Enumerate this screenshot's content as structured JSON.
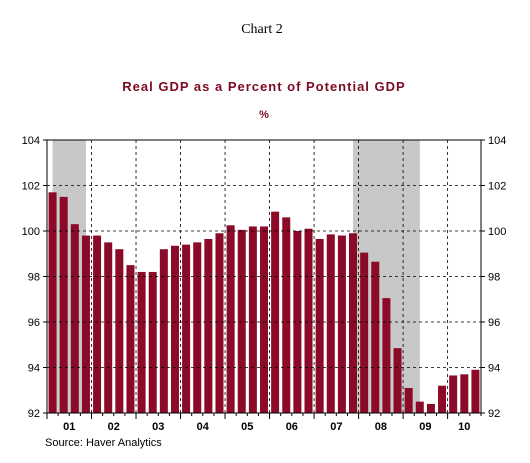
{
  "header": {
    "chart_number": "Chart 2"
  },
  "source": "Source: Haver Analytics",
  "colors": {
    "bar": "#8b0a27",
    "recession": "#c8c8c8",
    "axis": "#000000",
    "title": "#7a0a22"
  },
  "chart_data": {
    "type": "bar",
    "title": "Real GDP as a Percent of Potential GDP",
    "subtitle": "%",
    "xlabel": "",
    "ylabel": "",
    "ylim": [
      92,
      104
    ],
    "yticks": [
      92,
      94,
      96,
      98,
      100,
      102,
      104
    ],
    "year_labels": [
      "01",
      "02",
      "03",
      "04",
      "05",
      "06",
      "07",
      "08",
      "09",
      "10"
    ],
    "categories": [
      "2001Q1",
      "2001Q2",
      "2001Q3",
      "2001Q4",
      "2002Q1",
      "2002Q2",
      "2002Q3",
      "2002Q4",
      "2003Q1",
      "2003Q2",
      "2003Q3",
      "2003Q4",
      "2004Q1",
      "2004Q2",
      "2004Q3",
      "2004Q4",
      "2005Q1",
      "2005Q2",
      "2005Q3",
      "2005Q4",
      "2006Q1",
      "2006Q2",
      "2006Q3",
      "2006Q4",
      "2007Q1",
      "2007Q2",
      "2007Q3",
      "2007Q4",
      "2008Q1",
      "2008Q2",
      "2008Q3",
      "2008Q4",
      "2009Q1",
      "2009Q2",
      "2009Q3",
      "2009Q4",
      "2010Q1",
      "2010Q2",
      "2010Q3"
    ],
    "values": [
      101.7,
      101.5,
      100.3,
      99.8,
      99.8,
      99.5,
      99.2,
      98.5,
      98.2,
      98.2,
      99.2,
      99.35,
      99.4,
      99.5,
      99.65,
      99.9,
      100.25,
      100.05,
      100.2,
      100.2,
      100.85,
      100.6,
      100.0,
      100.1,
      99.65,
      99.85,
      99.8,
      99.9,
      99.05,
      98.65,
      97.05,
      94.85,
      93.1,
      92.5,
      92.4,
      93.2,
      93.65,
      93.7,
      93.9
    ],
    "recession_periods": [
      {
        "start": "2001Q1",
        "end": "2001Q4"
      },
      {
        "start": "2007Q4",
        "end": "2009Q2"
      }
    ],
    "grid": true,
    "legend": "none"
  }
}
